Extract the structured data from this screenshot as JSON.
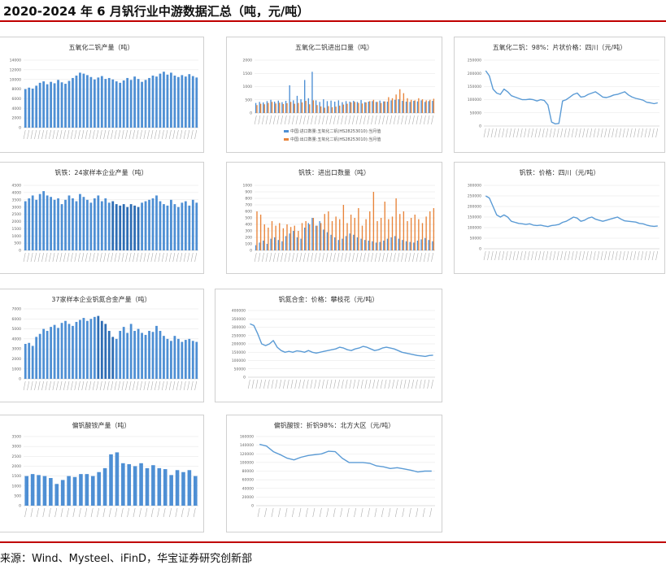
{
  "page": {
    "title": "2020-2024 年 6 月钒行业中游数据汇总（吨，元/吨）",
    "source": "来源：Wind、Mysteel、iFinD，华宝证券研究创新部"
  },
  "colors": {
    "blue": "#4e8fd4",
    "blue_dark": "#2e6db4",
    "orange": "#e8843a",
    "line": "#5b9bd5",
    "grid": "#e4e4e4",
    "rule": "#c00000"
  },
  "chart_data": [
    {
      "id": "v2o5-output",
      "type": "bar",
      "title": "五氧化二钒产量（吨）",
      "ylim": [
        0,
        14000
      ],
      "yticks": [
        "0",
        "2000",
        "4000",
        "6000",
        "8000",
        "10000",
        "12000",
        "14000"
      ],
      "series": [
        {
          "values": [
            8000,
            8300,
            8100,
            8700,
            9300,
            9600,
            9000,
            9500,
            9200,
            9900,
            9400,
            9100,
            9700,
            10300,
            10800,
            11400,
            11200,
            10900,
            10500,
            10000,
            10400,
            10700,
            10100,
            10300,
            10000,
            9600,
            9300,
            9800,
            10300,
            9900,
            10600,
            10100,
            9500,
            9900,
            10300,
            10800,
            10600,
            11200,
            11600,
            11000,
            11400,
            10800,
            10500,
            10900,
            10600,
            11100,
            10700,
            10400
          ]
        }
      ]
    },
    {
      "id": "v2o5-trade",
      "type": "bar",
      "title": "五氧化二钒进出口量（吨）",
      "ylim": [
        0,
        2000
      ],
      "yticks": [
        "0",
        "500",
        "1000",
        "1500",
        "2000"
      ],
      "series": [
        {
          "name": "中国:进口数量:五氧化二钒(HS28253010):当月值",
          "values": [
            380,
            420,
            400,
            450,
            500,
            430,
            470,
            410,
            460,
            1050,
            480,
            650,
            520,
            1250,
            560,
            1560,
            480,
            420,
            520,
            450,
            470,
            430,
            480,
            410,
            450,
            430,
            460,
            420,
            490,
            410,
            430,
            450,
            420,
            470,
            440,
            430,
            480,
            500,
            520,
            460,
            430,
            420,
            460,
            440,
            480,
            420,
            450,
            460
          ]
        },
        {
          "name": "中国:出口数量:五氧化二钒(HS28253010):当月值",
          "values": [
            300,
            350,
            330,
            380,
            420,
            360,
            390,
            340,
            370,
            420,
            350,
            380,
            400,
            460,
            330,
            480,
            300,
            250,
            200,
            260,
            220,
            240,
            280,
            320,
            350,
            400,
            420,
            380,
            360,
            400,
            450,
            500,
            420,
            380,
            440,
            600,
            560,
            700,
            900,
            750,
            560,
            500,
            480,
            560,
            520,
            480,
            500,
            540
          ]
        }
      ]
    },
    {
      "id": "v2o5-price",
      "type": "line",
      "title": "五氧化二钒：98%：片状价格：四川（元/吨）",
      "ylim": [
        0,
        250000
      ],
      "yticks": [
        "0",
        "50000",
        "100000",
        "150000",
        "200000",
        "250000"
      ],
      "series": [
        {
          "values": [
            210000,
            190000,
            140000,
            125000,
            120000,
            140000,
            130000,
            115000,
            110000,
            105000,
            100000,
            100000,
            102000,
            100000,
            95000,
            100000,
            97000,
            80000,
            15000,
            8000,
            10000,
            95000,
            100000,
            110000,
            120000,
            125000,
            110000,
            112000,
            120000,
            125000,
            130000,
            120000,
            110000,
            108000,
            112000,
            118000,
            120000,
            125000,
            130000,
            118000,
            110000,
            105000,
            102000,
            98000,
            90000,
            88000,
            85000,
            88000
          ]
        }
      ]
    },
    {
      "id": "vn-output",
      "type": "bar",
      "title": "钒铁：24家样本企业产量（吨）",
      "ylim": [
        0,
        4500
      ],
      "yticks": [
        "0",
        "500",
        "1000",
        "1500",
        "2000",
        "2500",
        "3000",
        "3500",
        "4000",
        "4500"
      ],
      "highlight_range": [
        24,
        31
      ],
      "series": [
        {
          "values": [
            3400,
            3600,
            3800,
            3500,
            3900,
            4100,
            3800,
            3700,
            3500,
            3600,
            3200,
            3500,
            3800,
            3600,
            3400,
            3900,
            3700,
            3500,
            3300,
            3600,
            3800,
            3400,
            3600,
            3300,
            3400,
            3200,
            3100,
            3200,
            3000,
            3200,
            3100,
            3000,
            3300,
            3400,
            3500,
            3600,
            3800,
            3400,
            3200,
            3100,
            3500,
            3200,
            3000,
            3300,
            3400,
            3100,
            3500,
            3300
          ]
        }
      ]
    },
    {
      "id": "vn-trade",
      "type": "bar",
      "title": "钒铁：进出口数量（吨）",
      "ylim": [
        0,
        1000
      ],
      "yticks": [
        "0",
        "100",
        "200",
        "300",
        "400",
        "500",
        "600",
        "700",
        "800",
        "900",
        "1000"
      ],
      "series": [
        {
          "values": [
            80,
            120,
            150,
            100,
            180,
            200,
            160,
            140,
            220,
            260,
            300,
            200,
            180,
            350,
            420,
            500,
            380,
            450,
            320,
            280,
            240,
            200,
            160,
            180,
            220,
            260,
            240,
            200,
            180,
            160,
            150,
            140,
            120,
            130,
            150,
            180,
            200,
            220,
            180,
            160,
            140,
            130,
            120,
            150,
            170,
            190,
            160,
            140
          ]
        },
        {
          "values": [
            600,
            550,
            400,
            350,
            450,
            380,
            420,
            340,
            400,
            360,
            380,
            300,
            420,
            450,
            400,
            500,
            380,
            420,
            560,
            600,
            450,
            520,
            480,
            700,
            420,
            550,
            500,
            650,
            380,
            480,
            600,
            900,
            450,
            500,
            750,
            480,
            520,
            800,
            560,
            600,
            450,
            500,
            550,
            480,
            420,
            520,
            600,
            650
          ]
        }
      ]
    },
    {
      "id": "vn-price",
      "type": "line",
      "title": "钒铁：价格：四川（元/吨）",
      "ylim": [
        0,
        300000
      ],
      "yticks": [
        "0",
        "50000",
        "100000",
        "150000",
        "200000",
        "250000",
        "300000"
      ],
      "series": [
        {
          "values": [
            250000,
            240000,
            200000,
            160000,
            150000,
            160000,
            150000,
            130000,
            125000,
            120000,
            118000,
            115000,
            118000,
            112000,
            110000,
            112000,
            108000,
            105000,
            110000,
            112000,
            115000,
            125000,
            130000,
            140000,
            150000,
            145000,
            130000,
            135000,
            145000,
            150000,
            140000,
            135000,
            130000,
            135000,
            140000,
            145000,
            150000,
            140000,
            132000,
            130000,
            128000,
            126000,
            120000,
            118000,
            112000,
            108000,
            106000,
            108000
          ]
        }
      ]
    },
    {
      "id": "vnalloy-output",
      "type": "bar",
      "title": "37家样本企业钒氮合金产量（吨）",
      "ylim": [
        0,
        7000
      ],
      "yticks": [
        "0",
        "1000",
        "2000",
        "3000",
        "4000",
        "5000",
        "6000",
        "7000"
      ],
      "highlight_range": [
        20,
        24
      ],
      "series": [
        {
          "values": [
            3500,
            3600,
            3300,
            4200,
            4500,
            5000,
            4800,
            5200,
            5400,
            5100,
            5600,
            5800,
            5500,
            5300,
            5700,
            5900,
            6100,
            5800,
            6000,
            6200,
            6300,
            5800,
            5500,
            4800,
            4200,
            4000,
            4800,
            5200,
            4600,
            5500,
            4800,
            5000,
            4600,
            4400,
            4800,
            4700,
            5300,
            4800,
            4300,
            4000,
            3800,
            4300,
            4000,
            3700,
            3900,
            4000,
            3800,
            3700
          ]
        }
      ]
    },
    {
      "id": "vnalloy-price",
      "type": "line",
      "title": "钒氮合金：价格：攀枝花（元/吨）",
      "ylim": [
        0,
        400000
      ],
      "yticks": [
        "0",
        "50000",
        "100000",
        "150000",
        "200000",
        "250000",
        "300000",
        "350000",
        "400000"
      ],
      "series": [
        {
          "values": [
            320000,
            310000,
            260000,
            200000,
            190000,
            200000,
            220000,
            180000,
            160000,
            150000,
            155000,
            150000,
            158000,
            155000,
            150000,
            160000,
            150000,
            145000,
            150000,
            155000,
            160000,
            165000,
            170000,
            180000,
            175000,
            165000,
            160000,
            170000,
            175000,
            185000,
            180000,
            170000,
            160000,
            165000,
            175000,
            180000,
            175000,
            170000,
            160000,
            150000,
            145000,
            140000,
            135000,
            130000,
            128000,
            125000,
            130000,
            132000
          ]
        }
      ]
    },
    {
      "id": "vbattery-output",
      "type": "bar",
      "title": "偏钒酸铵产量（吨）",
      "ylim": [
        0,
        3500
      ],
      "yticks": [
        "0",
        "500",
        "1000",
        "1500",
        "2000",
        "2500",
        "3000",
        "3500"
      ],
      "series": [
        {
          "values": [
            1500,
            1600,
            1550,
            1500,
            1400,
            1100,
            1300,
            1500,
            1450,
            1600,
            1600,
            1500,
            1700,
            1900,
            2600,
            2700,
            2150,
            2100,
            2000,
            2150,
            1900,
            2050,
            1900,
            1850,
            1550,
            1800,
            1700,
            1800,
            1500
          ]
        }
      ]
    },
    {
      "id": "vbattery-price",
      "type": "line",
      "title": "偏钒酸铵：折钒98%：北方大区（元/吨）",
      "ylim": [
        0,
        160000
      ],
      "yticks": [
        "0",
        "20000",
        "40000",
        "60000",
        "80000",
        "100000",
        "120000",
        "140000",
        "160000"
      ],
      "series": [
        {
          "values": [
            142000,
            138000,
            125000,
            118000,
            110000,
            106000,
            112000,
            116000,
            118000,
            120000,
            126000,
            125000,
            110000,
            100000,
            100000,
            100000,
            98000,
            92000,
            90000,
            86000,
            88000,
            85000,
            82000,
            78000,
            80000,
            80000
          ]
        }
      ]
    }
  ]
}
